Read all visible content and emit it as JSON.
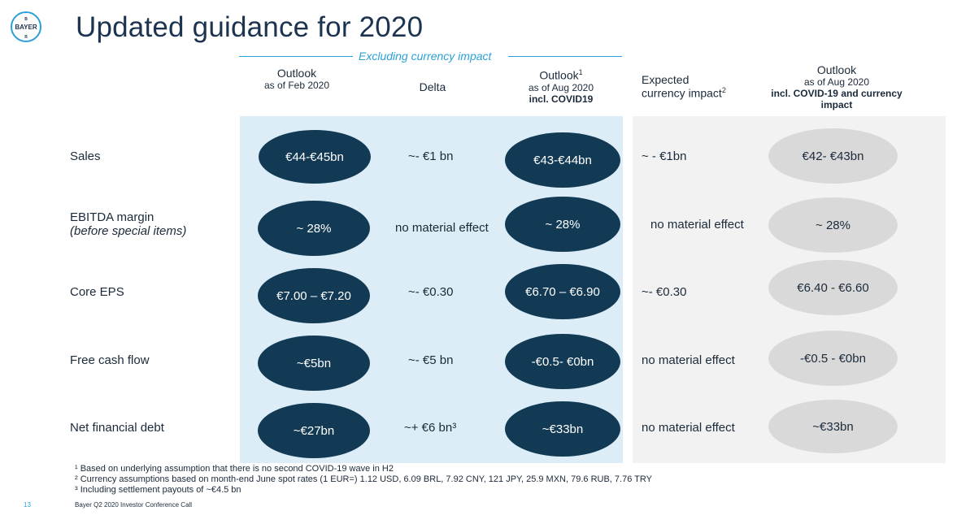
{
  "logo": {
    "text": "BAYER"
  },
  "title": "Updated guidance for 2020",
  "excluding_label": "Excluding currency impact",
  "columns": {
    "outlook_feb": {
      "l1": "Outlook",
      "l2": "as of Feb 2020"
    },
    "delta": {
      "l1": "Delta"
    },
    "outlook_aug": {
      "l1": "Outlook",
      "sup": "1",
      "l2": "as of Aug 2020",
      "l3": "incl. COVID19"
    },
    "currency": {
      "l1": "Expected",
      "l2": "currency impact",
      "sup": "2"
    },
    "outlook_final": {
      "l1": "Outlook",
      "l2": "as of Aug 2020",
      "l3": "incl. COVID-19 and currency impact"
    }
  },
  "rows": [
    {
      "label": "Sales",
      "sub": "",
      "feb": "€44-€45bn",
      "delta": "~- €1 bn",
      "aug": "€43-€44bn",
      "currency": "~ - €1bn",
      "final": "€42- €43bn"
    },
    {
      "label": "EBITDA margin",
      "sub": "(before special items)",
      "feb": "~ 28%",
      "delta": "no material effect",
      "aug": "~ 28%",
      "currency": "no material effect",
      "final": "~ 28%"
    },
    {
      "label": "Core EPS",
      "sub": "",
      "feb": "€7.00 – €7.20",
      "delta": "~- €0.30",
      "aug": "€6.70 – €6.90",
      "currency": "~- €0.30",
      "final": "€6.40 - €6.60"
    },
    {
      "label": "Free cash flow",
      "sub": "",
      "feb": "~€5bn",
      "delta": "~- €5 bn",
      "aug": "-€0.5- €0bn",
      "currency": "no material effect",
      "final": "-€0.5 - €0bn"
    },
    {
      "label": "Net financial debt",
      "sub": "",
      "feb": "~€27bn",
      "delta": "~+ €6 bn³",
      "aug": "~€33bn",
      "currency": "no material effect",
      "final": "~€33bn"
    }
  ],
  "footnotes": [
    "¹ Based on underlying assumption that there is no second COVID-19 wave in H2",
    "² Currency assumptions based on month-end June spot rates (1 EUR=)  1.12 USD, 6.09 BRL, 7.92 CNY, 121 JPY, 25.9 MXN, 79.6 RUB, 7.76 TRY",
    "³ Including settlement payouts of ~€4.5 bn"
  ],
  "page_number": "13",
  "footer": "Bayer Q2 2020 Investor Conference Call",
  "colors": {
    "dark_oval": "#123a54",
    "grey_oval": "#d9d9d9",
    "blue_bg": "#dcedf8",
    "accent": "#2aa1d8"
  }
}
